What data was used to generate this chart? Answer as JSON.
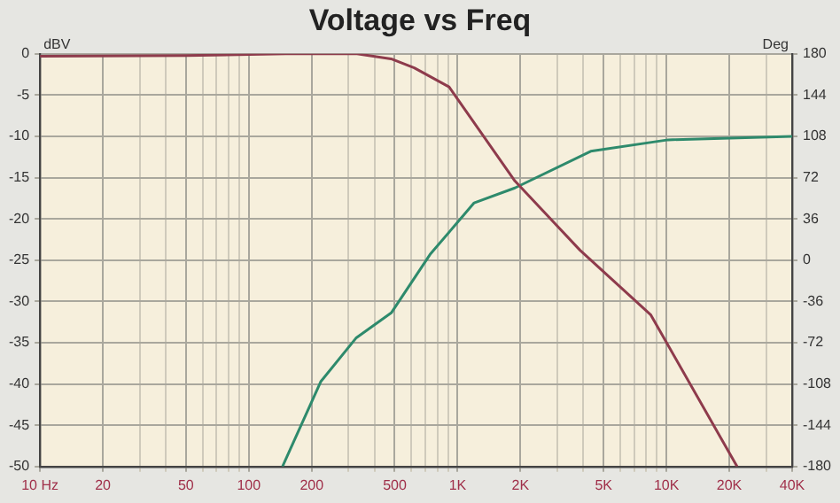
{
  "chart_data": {
    "type": "line",
    "title": "Voltage vs Freq",
    "ylabel": "dBV",
    "y2label": "Deg",
    "log": "x",
    "grid": true,
    "legend": false,
    "marker": "none",
    "line_style": "solid",
    "xlim": [
      10,
      40000
    ],
    "xticks": [
      {
        "value": 10,
        "label": "10 Hz"
      },
      20,
      {
        "value": 30,
        "label": null
      },
      {
        "value": 40,
        "label": null
      },
      50,
      {
        "value": 60,
        "label": null
      },
      {
        "value": 70,
        "label": null
      },
      {
        "value": 80,
        "label": null
      },
      {
        "value": 90,
        "label": null
      },
      100,
      200,
      {
        "value": 300,
        "label": null
      },
      {
        "value": 400,
        "label": null
      },
      500,
      {
        "value": 600,
        "label": null
      },
      {
        "value": 700,
        "label": null
      },
      {
        "value": 800,
        "label": null
      },
      {
        "value": 900,
        "label": null
      },
      {
        "value": 1000,
        "label": "1K"
      },
      {
        "value": 2000,
        "label": "2K"
      },
      {
        "value": 3000,
        "label": null
      },
      {
        "value": 4000,
        "label": null
      },
      {
        "value": 5000,
        "label": "5K"
      },
      {
        "value": 6000,
        "label": null
      },
      {
        "value": 7000,
        "label": null
      },
      {
        "value": 8000,
        "label": null
      },
      {
        "value": 9000,
        "label": null
      },
      {
        "value": 10000,
        "label": "10K"
      },
      {
        "value": 20000,
        "label": "20K"
      },
      {
        "value": 30000,
        "label": null
      },
      {
        "value": 40000,
        "label": "40K"
      }
    ],
    "ylim": [
      -50,
      0
    ],
    "yticks": [
      0,
      -5,
      -10,
      -15,
      -20,
      -25,
      -30,
      -35,
      -40,
      -45,
      -50
    ],
    "y2lim": [
      -180,
      180
    ],
    "y2ticks": [
      180,
      144,
      108,
      72,
      36,
      0,
      -36,
      -72,
      -108,
      -144,
      -180
    ],
    "series": [
      {
        "color": "#8e3b4c",
        "x": [
          10,
          50,
          150,
          330,
          480,
          620,
          910,
          1880,
          3860,
          8400,
          21800
        ],
        "values": [
          -0.3,
          -0.2,
          0,
          0,
          -0.6,
          -1.7,
          -4,
          -15.4,
          -23.8,
          -31.6,
          -50
        ]
      },
      {
        "color": "#2e8a6c",
        "axis": "y2",
        "x": [
          145,
          221,
          326,
          481,
          738,
          1200,
          1880,
          4340,
          10200,
          40000
        ],
        "values": [
          -180,
          -106,
          -68,
          -46,
          5,
          50,
          63,
          95,
          105,
          108
        ]
      }
    ]
  }
}
